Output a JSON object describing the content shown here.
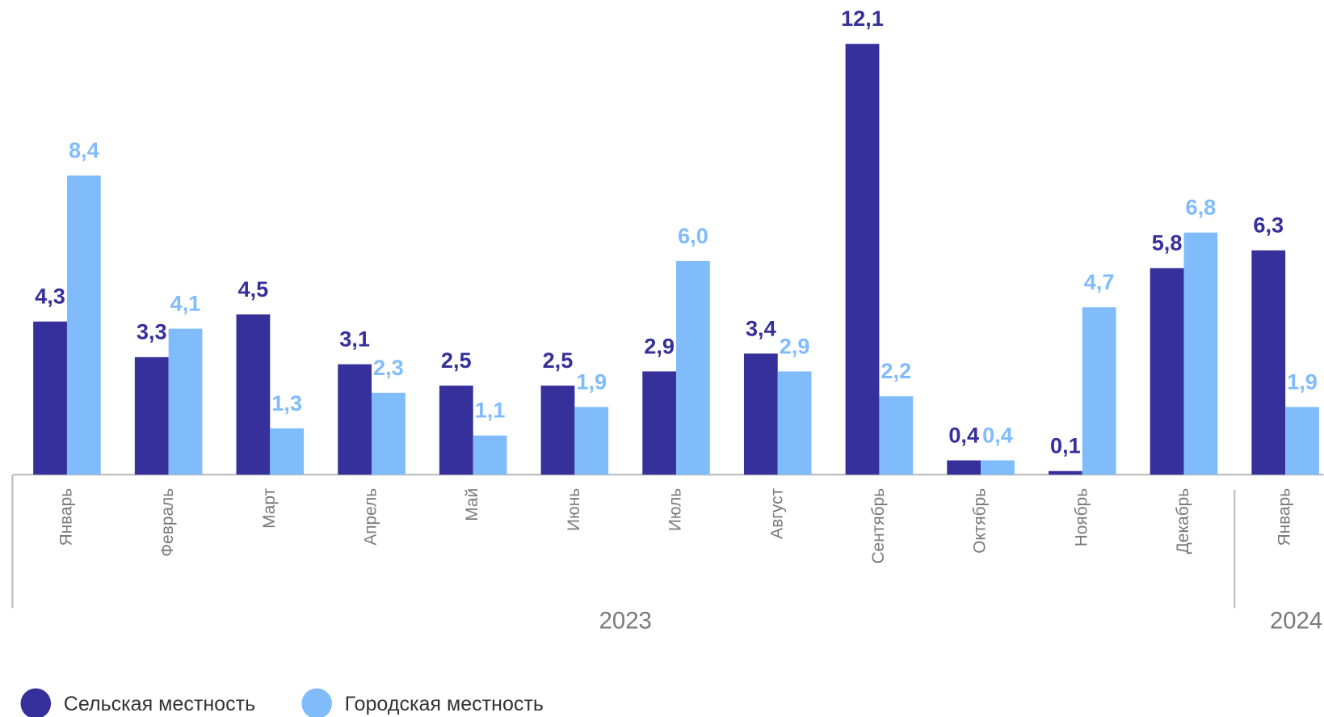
{
  "chart_data": {
    "type": "bar",
    "category_groups": [
      {
        "name": "2023",
        "categories": [
          "Январь",
          "Февраль",
          "Март",
          "Апрель",
          "Май",
          "Июнь",
          "Июль",
          "Август",
          "Сентябрь",
          "Октябрь",
          "Ноябрь",
          "Декабрь"
        ]
      },
      {
        "name": "2024",
        "categories": [
          "Январь"
        ]
      }
    ],
    "series": [
      {
        "name": "Сельская местность",
        "color": "#35309a",
        "values": [
          4.3,
          3.3,
          4.5,
          3.1,
          2.5,
          2.5,
          2.9,
          3.4,
          12.1,
          0.4,
          0.1,
          5.8,
          6.3
        ],
        "value_labels": [
          "4,3",
          "3,3",
          "4,5",
          "3,1",
          "2,5",
          "2,5",
          "2,9",
          "3,4",
          "12,1",
          "0,4",
          "0,1",
          "5,8",
          "6,3"
        ]
      },
      {
        "name": "Городская местность",
        "color": "#80bcfc",
        "values": [
          8.4,
          4.1,
          1.3,
          2.3,
          1.1,
          1.9,
          6.0,
          2.9,
          2.2,
          0.4,
          4.7,
          6.8,
          1.9
        ],
        "value_labels": [
          "8,4",
          "4,1",
          "1,3",
          "2,3",
          "1,1",
          "1,9",
          "6,0",
          "2,9",
          "2,2",
          "0,4",
          "4,7",
          "6,8",
          "1,9"
        ]
      }
    ],
    "ylim": [
      0,
      13
    ],
    "legend": "bottom-left"
  }
}
